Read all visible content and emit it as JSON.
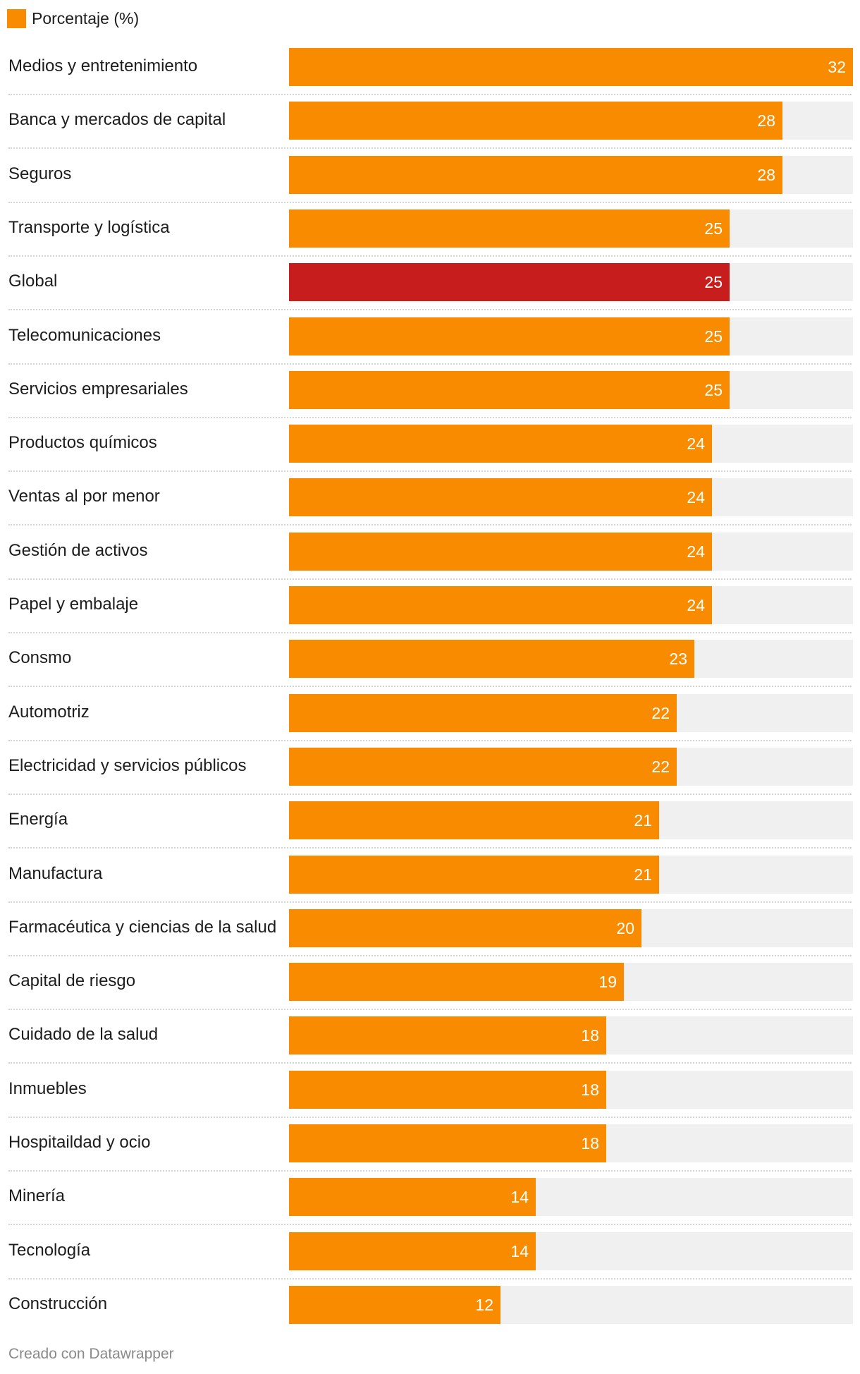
{
  "legend": {
    "label": "Porcentaje (%)",
    "color": "#f98b00"
  },
  "colors": {
    "bar": "#f98b00",
    "highlight": "#c71e1d",
    "track": "#f0f0f0"
  },
  "credit": "Creado con Datawrapper",
  "chart_data": {
    "type": "bar",
    "orientation": "horizontal",
    "title": "",
    "xlabel": "",
    "ylabel": "",
    "xlim": [
      0,
      32
    ],
    "series": [
      {
        "name": "Porcentaje (%)"
      }
    ],
    "highlight": "Global",
    "categories": [
      "Medios y entretenimiento",
      "Banca y mercados de capital",
      "Seguros",
      "Transporte y logística",
      "Global",
      "Telecomunicaciones",
      "Servicios empresariales",
      "Productos químicos",
      "Ventas al por menor",
      "Gestión de activos",
      "Papel y embalaje",
      "Consmo",
      "Automotriz",
      "Electricidad y servicios públicos",
      "Energía",
      "Manufactura",
      "Farmacéutica y ciencias de la salud",
      "Capital de riesgo",
      "Cuidado de la salud",
      "Inmuebles",
      "Hospitaildad y ocio",
      "Minería",
      "Tecnología",
      "Construcción"
    ],
    "values": [
      32,
      28,
      28,
      25,
      25,
      25,
      25,
      24,
      24,
      24,
      24,
      23,
      22,
      22,
      21,
      21,
      20,
      19,
      18,
      18,
      18,
      14,
      14,
      12
    ]
  }
}
